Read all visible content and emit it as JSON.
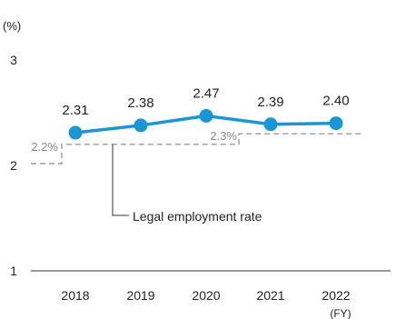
{
  "chart_data": {
    "type": "line",
    "unit_label": "(%)",
    "x_unit_label": "(FY)",
    "categories": [
      "2018",
      "2019",
      "2020",
      "2021",
      "2022"
    ],
    "ylim": [
      1,
      3
    ],
    "y_ticks": [
      "1",
      "2",
      "3"
    ],
    "grid": false,
    "series": [
      {
        "values": [
          2.31,
          2.38,
          2.47,
          2.39,
          2.4
        ],
        "labels": [
          "2.31",
          "2.38",
          "2.47",
          "2.39",
          "2.40"
        ],
        "color": "#1a96d4"
      }
    ],
    "reference_line": {
      "name": "Legal employment rate",
      "segments": [
        {
          "from_category": "2018",
          "to_category": "2020",
          "value": 2.2,
          "label": "2.2%"
        },
        {
          "from_category": "2021",
          "to_category": "2022",
          "value": 2.3,
          "label": "2.3%"
        }
      ],
      "color": "#9a9a9a",
      "style": "dashed"
    }
  }
}
